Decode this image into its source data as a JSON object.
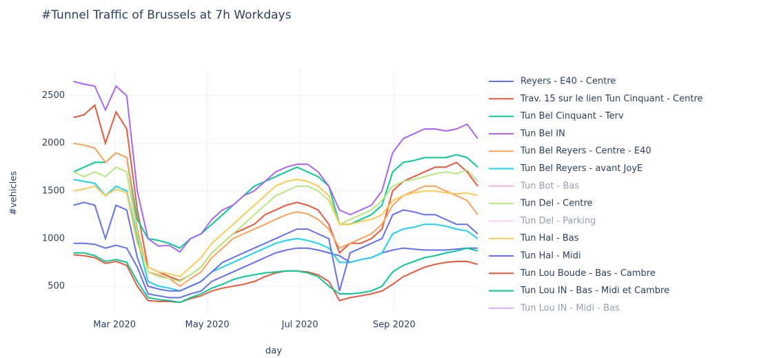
{
  "chart_data": {
    "type": "line",
    "title": "#Tunnel Traffic of Brussels at 7h Workdays",
    "x_label": "day",
    "y_label": "#vehicles",
    "x": [
      "2020-02-03",
      "2020-02-10",
      "2020-02-17",
      "2020-02-24",
      "2020-03-02",
      "2020-03-09",
      "2020-03-16",
      "2020-03-23",
      "2020-03-30",
      "2020-04-06",
      "2020-04-13",
      "2020-04-20",
      "2020-04-27",
      "2020-05-04",
      "2020-05-11",
      "2020-05-18",
      "2020-05-25",
      "2020-06-01",
      "2020-06-08",
      "2020-06-15",
      "2020-06-22",
      "2020-06-29",
      "2020-07-06",
      "2020-07-13",
      "2020-07-20",
      "2020-07-27",
      "2020-08-03",
      "2020-08-10",
      "2020-08-17",
      "2020-08-24",
      "2020-08-31",
      "2020-09-07",
      "2020-09-14",
      "2020-09-21",
      "2020-09-28",
      "2020-10-05",
      "2020-10-12",
      "2020-10-19",
      "2020-10-26"
    ],
    "xlim": [
      "2020-01-31",
      "2020-10-26"
    ],
    "xticks": [
      {
        "value": "2020-03-01",
        "label": "Mar 2020"
      },
      {
        "value": "2020-05-01",
        "label": "May 2020"
      },
      {
        "value": "2020-07-01",
        "label": "Jul 2020"
      },
      {
        "value": "2020-09-01",
        "label": "Sep 2020"
      }
    ],
    "ylim": [
      210,
      2780
    ],
    "yticks": [
      500,
      1000,
      1500,
      2000,
      2500
    ],
    "grid": true,
    "grid_color": "#ebf0f8",
    "legend": "right",
    "series": [
      {
        "name": "Reyers - E40 - Centre",
        "color": "#636efa",
        "values": [
          950,
          950,
          940,
          900,
          930,
          900,
          700,
          420,
          400,
          380,
          380,
          420,
          450,
          550,
          600,
          650,
          700,
          750,
          800,
          850,
          880,
          900,
          900,
          880,
          850,
          820,
          750,
          780,
          800,
          850,
          880,
          900,
          890,
          880,
          880,
          880,
          890,
          900,
          900
        ]
      },
      {
        "name": "Trav. 15 sur le lien Tun Cinquant - Centre",
        "color": "#ef553b",
        "values": [
          2270,
          2300,
          2400,
          2000,
          2330,
          2150,
          1300,
          700,
          650,
          600,
          560,
          620,
          700,
          850,
          950,
          1050,
          1100,
          1150,
          1250,
          1300,
          1350,
          1380,
          1350,
          1300,
          1150,
          850,
          950,
          950,
          1000,
          1100,
          1500,
          1600,
          1650,
          1700,
          1750,
          1750,
          1800,
          1700,
          1550
        ]
      },
      {
        "name": "Tun Bel Cinquant - Terv",
        "color": "#00cc96",
        "values": [
          1700,
          1750,
          1800,
          1800,
          1900,
          1850,
          1200,
          1000,
          980,
          950,
          900,
          1000,
          1050,
          1150,
          1250,
          1350,
          1450,
          1550,
          1600,
          1650,
          1700,
          1750,
          1700,
          1650,
          1550,
          1150,
          1150,
          1200,
          1250,
          1350,
          1700,
          1800,
          1820,
          1850,
          1850,
          1850,
          1880,
          1850,
          1750
        ]
      },
      {
        "name": "Tun Bel IN",
        "color": "#ab63fa",
        "values": [
          2650,
          2620,
          2600,
          2350,
          2600,
          2500,
          1500,
          1000,
          920,
          930,
          860,
          1000,
          1050,
          1200,
          1300,
          1350,
          1450,
          1500,
          1600,
          1700,
          1750,
          1780,
          1780,
          1700,
          1550,
          1300,
          1250,
          1300,
          1350,
          1500,
          1900,
          2050,
          2100,
          2150,
          2150,
          2130,
          2150,
          2200,
          2050
        ]
      },
      {
        "name": "Tun Bel Reyers - Centre - E40",
        "color": "#ffa15a",
        "values": [
          2000,
          1980,
          1950,
          1800,
          1900,
          1850,
          1100,
          650,
          620,
          580,
          500,
          580,
          650,
          800,
          900,
          1000,
          1050,
          1100,
          1150,
          1200,
          1250,
          1280,
          1260,
          1200,
          1100,
          900,
          950,
          1000,
          1050,
          1150,
          1350,
          1450,
          1500,
          1550,
          1550,
          1500,
          1450,
          1400,
          1250
        ]
      },
      {
        "name": "Tun Bel Reyers - avant JoyE",
        "color": "#19d3f3",
        "values": [
          1620,
          1600,
          1580,
          1450,
          1550,
          1500,
          1000,
          550,
          500,
          480,
          450,
          500,
          550,
          650,
          700,
          750,
          800,
          850,
          900,
          950,
          980,
          1000,
          980,
          950,
          900,
          750,
          750,
          780,
          800,
          850,
          1050,
          1100,
          1120,
          1150,
          1150,
          1130,
          1100,
          1080,
          1000
        ]
      },
      {
        "name": "Tun Bot - Bas",
        "color": "#ff6692",
        "visible": "legendonly"
      },
      {
        "name": "Tun Del - Centre",
        "color": "#b6e880",
        "values": [
          1700,
          1650,
          1700,
          1650,
          1750,
          1700,
          1050,
          650,
          600,
          580,
          550,
          620,
          700,
          850,
          950,
          1050,
          1150,
          1250,
          1350,
          1450,
          1500,
          1550,
          1550,
          1500,
          1400,
          1150,
          1200,
          1250,
          1300,
          1400,
          1550,
          1600,
          1620,
          1650,
          1680,
          1700,
          1680,
          1720,
          1600
        ]
      },
      {
        "name": "Tun Del - Parking",
        "color": "#ff97ff",
        "visible": "legendonly"
      },
      {
        "name": "Tun Hal - Bas",
        "color": "#fecb52",
        "values": [
          1500,
          1520,
          1550,
          1450,
          1520,
          1480,
          950,
          700,
          650,
          630,
          600,
          700,
          800,
          950,
          1050,
          1150,
          1250,
          1350,
          1450,
          1550,
          1600,
          1620,
          1600,
          1550,
          1450,
          1150,
          1150,
          1180,
          1200,
          1250,
          1400,
          1450,
          1480,
          1500,
          1500,
          1480,
          1470,
          1480,
          1450
        ]
      },
      {
        "name": "Tun Hal - Midi",
        "color": "#636efa",
        "values": [
          1350,
          1380,
          1350,
          1000,
          1350,
          1300,
          800,
          500,
          470,
          450,
          450,
          500,
          550,
          650,
          750,
          800,
          850,
          900,
          950,
          1000,
          1050,
          1100,
          1100,
          1050,
          1000,
          450,
          850,
          900,
          950,
          1000,
          1250,
          1300,
          1280,
          1250,
          1250,
          1200,
          1150,
          1150,
          1050
        ]
      },
      {
        "name": "Tun Lou Boude - Bas - Cambre",
        "color": "#ef553b",
        "values": [
          830,
          820,
          800,
          740,
          760,
          720,
          500,
          350,
          340,
          340,
          330,
          370,
          400,
          450,
          480,
          500,
          520,
          550,
          600,
          640,
          660,
          660,
          650,
          620,
          550,
          350,
          380,
          400,
          420,
          450,
          520,
          600,
          650,
          700,
          730,
          750,
          760,
          760,
          730
        ]
      },
      {
        "name": "Tun Lou IN - Bas - Midi et Cambre",
        "color": "#00cc96",
        "values": [
          850,
          850,
          820,
          760,
          780,
          750,
          550,
          380,
          360,
          350,
          330,
          380,
          420,
          480,
          520,
          570,
          600,
          620,
          640,
          650,
          660,
          660,
          640,
          600,
          500,
          420,
          420,
          430,
          450,
          500,
          650,
          720,
          760,
          800,
          820,
          850,
          870,
          900,
          870
        ]
      },
      {
        "name": "Tun Lou IN - Midi - Bas",
        "color": "#ab63fa",
        "visible": "legendonly"
      }
    ]
  }
}
